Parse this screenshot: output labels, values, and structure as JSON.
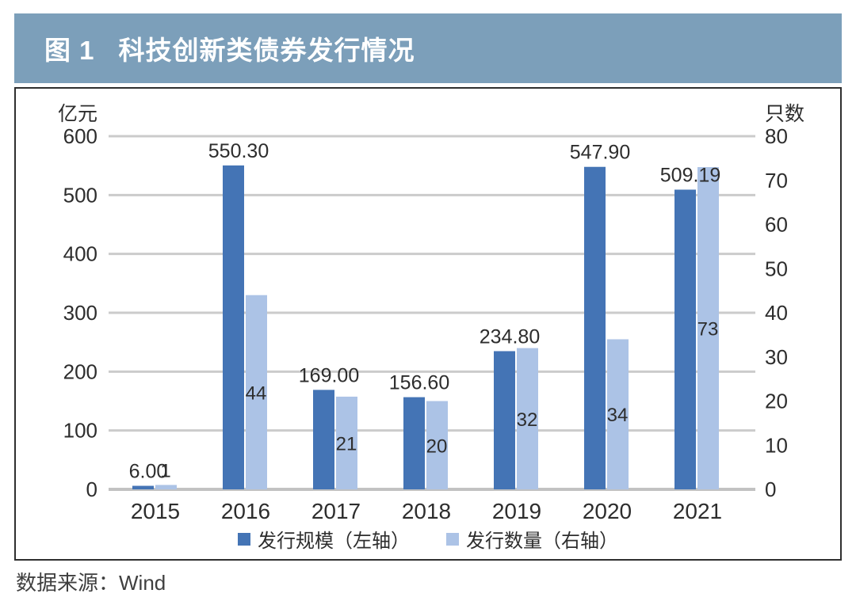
{
  "header": {
    "figure_label": "图 1",
    "title": "科技创新类债券发行情况"
  },
  "source": "数据来源：Wind",
  "colors": {
    "title_bg": "#7c9fba",
    "scale_bar": "#4474b5",
    "quantity_bar": "#acc3e6",
    "gridline": "#cbcbcb",
    "baseline": "#c2c2c2",
    "axis_text": "#2d2d2d"
  },
  "chart_data": {
    "type": "bar",
    "title": "图 1 科技创新类债券发行情况",
    "categories": [
      "2015",
      "2016",
      "2017",
      "2018",
      "2019",
      "2020",
      "2021"
    ],
    "series": [
      {
        "name": "发行规模（左轴）",
        "axis": "left",
        "color": "#4474b5",
        "values": [
          6.0,
          550.3,
          169.0,
          156.6,
          234.8,
          547.9,
          509.19
        ],
        "value_labels": [
          "6.00",
          "550.30",
          "169.00",
          "156.60",
          "234.80",
          "547.90",
          "509.19"
        ]
      },
      {
        "name": "发行数量（右轴）",
        "axis": "right",
        "color": "#acc3e6",
        "values": [
          1,
          44,
          21,
          20,
          32,
          34,
          73
        ],
        "value_labels": [
          "1",
          "44",
          "21",
          "20",
          "32",
          "34",
          "73"
        ]
      }
    ],
    "left_axis": {
      "title": "亿元",
      "min": 0,
      "max": 600,
      "ticks": [
        0,
        100,
        200,
        300,
        400,
        500,
        600
      ]
    },
    "right_axis": {
      "title": "只数",
      "min": 0,
      "max": 80,
      "ticks": [
        0,
        10,
        20,
        30,
        40,
        50,
        60,
        70,
        80
      ]
    },
    "grid": "horizontal",
    "legend_position": "bottom",
    "source": "数据来源：Wind"
  }
}
